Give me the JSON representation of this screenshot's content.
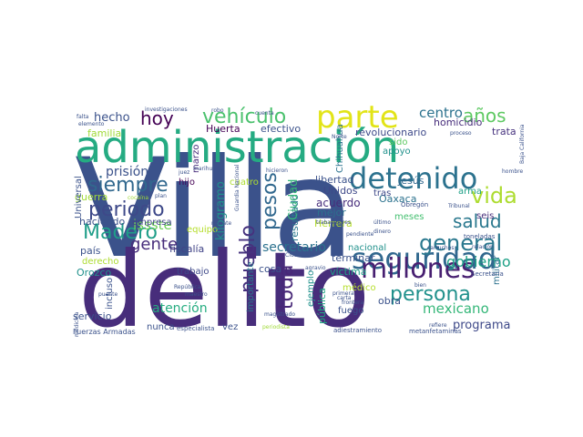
{
  "words": [
    {
      "text": "Villa",
      "color": "#3b528b"
    },
    {
      "text": "delito",
      "color": "#472d7b"
    },
    {
      "text": "administración",
      "color": "#25ab82"
    },
    {
      "text": "parte",
      "color": "#e2e418"
    },
    {
      "text": "detenido",
      "color": "#2c728e"
    },
    {
      "text": "seguridad",
      "color": "#31688e"
    },
    {
      "text": "millones",
      "color": "#482071"
    },
    {
      "text": "persona",
      "color": "#21918c"
    },
    {
      "text": "general",
      "color": "#2a788e"
    },
    {
      "text": "vehículo",
      "color": "#4ac16d"
    },
    {
      "text": "años",
      "color": "#5ec962"
    },
    {
      "text": "periodo",
      "color": "#3e4989"
    },
    {
      "text": "Madero",
      "color": "#1f9e89"
    },
    {
      "text": "siempre",
      "color": "#31688e"
    },
    {
      "text": "vida",
      "color": "#addc30"
    },
    {
      "text": "salud",
      "color": "#2a788e"
    },
    {
      "text": "hoy",
      "color": "#440154"
    },
    {
      "text": "hecho",
      "color": "#3b528b"
    },
    {
      "text": "gente",
      "color": "#472d7b"
    },
    {
      "text": "pesos",
      "color": "#31688e"
    },
    {
      "text": "pueblo",
      "color": "#46327e"
    },
    {
      "text": "toda",
      "color": "#482878"
    },
    {
      "text": "secretario",
      "color": "#2c728e"
    },
    {
      "text": "gobierno",
      "color": "#1fa187"
    },
    {
      "text": "mexicano",
      "color": "#35b779"
    },
    {
      "text": "programa",
      "color": "#3e4989"
    },
    {
      "text": "issste",
      "color": "#6ece58"
    },
    {
      "text": "centro",
      "color": "#2c728e"
    },
    {
      "text": "prisión",
      "color": "#3b528b"
    },
    {
      "text": "kilogramo",
      "color": "#21918c"
    },
    {
      "text": "fiscalía",
      "color": "#414487"
    },
    {
      "text": "atención",
      "color": "#27ad81"
    },
    {
      "text": "acuerdo",
      "color": "#472d7b"
    },
    {
      "text": "resultado",
      "color": "#2a788e"
    },
    {
      "text": "libertad",
      "color": "#3b528b"
    },
    {
      "text": "Jesús",
      "color": "#31688e"
    },
    {
      "text": "Herrera",
      "color": "#b5de2b"
    },
    {
      "text": "Unidos",
      "color": "#3e4989"
    },
    {
      "text": "mejor",
      "color": "#2c728e"
    },
    {
      "text": "revolucionario",
      "color": "#3e4989"
    },
    {
      "text": "homicidio",
      "color": "#472d7b"
    },
    {
      "text": "trata",
      "color": "#46327e"
    },
    {
      "text": "marzo",
      "color": "#472d7b"
    },
    {
      "text": "Huerta",
      "color": "#440154"
    },
    {
      "text": "efectivo",
      "color": "#3b528b"
    },
    {
      "text": "familia",
      "color": "#a0da39"
    },
    {
      "text": "guerra",
      "color": "#a0da39"
    },
    {
      "text": "haciendo",
      "color": "#3b528b"
    },
    {
      "text": "empresa",
      "color": "#414487"
    },
    {
      "text": "país",
      "color": "#3b528b"
    },
    {
      "text": "derecho",
      "color": "#addc30"
    },
    {
      "text": "Orozco",
      "color": "#21918c"
    },
    {
      "text": "trabajo",
      "color": "#3e4989"
    },
    {
      "text": "cosa",
      "color": "#3b528b"
    },
    {
      "text": "víctima",
      "color": "#1fa187"
    },
    {
      "text": "terminar",
      "color": "#3b528b"
    },
    {
      "text": "nacional",
      "color": "#21918c"
    },
    {
      "text": "militar",
      "color": "#2c728e"
    },
    {
      "text": "obra",
      "color": "#3b528b"
    },
    {
      "text": "pública",
      "color": "#22a884"
    },
    {
      "text": "Oaxaca",
      "color": "#2c728e"
    },
    {
      "text": "importante",
      "color": "#2a788e"
    },
    {
      "text": "Chihuahua",
      "color": "#2c728e"
    },
    {
      "text": "Ciudad",
      "color": "#35b779"
    },
    {
      "text": "ejemplo",
      "color": "#21918c"
    },
    {
      "text": "incluso",
      "color": "#3b528b"
    },
    {
      "text": "servicio",
      "color": "#3b528b"
    },
    {
      "text": "nunca",
      "color": "#3b528b"
    },
    {
      "text": "vez",
      "color": "#3b528b"
    },
    {
      "text": "Universal",
      "color": "#3b528b"
    },
    {
      "text": "hijo",
      "color": "#440154"
    },
    {
      "text": "tras",
      "color": "#3e4989"
    },
    {
      "text": "meses",
      "color": "#44bf70"
    },
    {
      "text": "seis",
      "color": "#472d7b"
    },
    {
      "text": "médico",
      "color": "#b5de2b"
    },
    {
      "text": "fuego",
      "color": "#3b528b"
    },
    {
      "text": "apoyo",
      "color": "#21918c"
    },
    {
      "text": "sido",
      "color": "#5ec962"
    },
    {
      "text": "arma",
      "color": "#1fa187"
    },
    {
      "text": "equipo",
      "color": "#b5de2b"
    },
    {
      "text": "cuatro",
      "color": "#addc30"
    },
    {
      "text": "Fuerzas Armadas",
      "color": "#3b528b"
    },
    {
      "text": "especialista",
      "color": "#3b528b"
    },
    {
      "text": "adiestramiento",
      "color": "#3b528b"
    },
    {
      "text": "metanfetaminas",
      "color": "#3b528b"
    },
    {
      "text": "investigaciones",
      "color": "#3b528b"
    },
    {
      "text": "elemento",
      "color": "#3b528b"
    },
    {
      "text": "falta",
      "color": "#3b528b"
    },
    {
      "text": "cocaína",
      "color": "#a0da39"
    },
    {
      "text": "plan",
      "color": "#3b528b"
    },
    {
      "text": "juez",
      "color": "#3b528b"
    },
    {
      "text": "Obregón",
      "color": "#3b528b"
    },
    {
      "text": "toneladas",
      "color": "#3b528b"
    },
    {
      "text": "Secretaría",
      "color": "#3b528b"
    },
    {
      "text": "República",
      "color": "#3b528b"
    },
    {
      "text": "maestro",
      "color": "#3b528b"
    },
    {
      "text": "cartuchos",
      "color": "#3b528b"
    },
    {
      "text": "dinero",
      "color": "#3b528b"
    },
    {
      "text": "Norte",
      "color": "#3b528b"
    },
    {
      "text": "carta",
      "color": "#3b528b"
    },
    {
      "text": "puente",
      "color": "#3b528b"
    },
    {
      "text": "hombre",
      "color": "#3b528b"
    },
    {
      "text": "trabajadores",
      "color": "#3b528b"
    },
    {
      "text": "Guardia Nacional",
      "color": "#3b528b"
    },
    {
      "text": "rescate",
      "color": "#3b528b"
    },
    {
      "text": "hicieron",
      "color": "#3b528b"
    },
    {
      "text": "robo",
      "color": "#3b528b"
    },
    {
      "text": "proceso",
      "color": "#3b528b"
    },
    {
      "text": "Baja California",
      "color": "#3b528b"
    },
    {
      "text": "relación",
      "color": "#3b528b"
    },
    {
      "text": "periodista",
      "color": "#a0da39"
    },
    {
      "text": "frontera",
      "color": "#3b528b"
    },
    {
      "text": "cuenta",
      "color": "#3b528b"
    },
    {
      "text": "Tribunal",
      "color": "#3b528b"
    },
    {
      "text": "pendiente",
      "color": "#3b528b"
    },
    {
      "text": "bien",
      "color": "#3b528b"
    },
    {
      "text": "refiere",
      "color": "#3b528b"
    },
    {
      "text": "marihuana",
      "color": "#3b528b"
    },
    {
      "text": "medicina",
      "color": "#3b528b"
    },
    {
      "text": "primera",
      "color": "#3b528b"
    },
    {
      "text": "magistrado",
      "color": "#3b528b"
    },
    {
      "text": "último",
      "color": "#3b528b"
    },
    {
      "text": "Ciudadano",
      "color": "#3b528b"
    },
    {
      "text": "agravio",
      "color": "#3b528b"
    },
    {
      "text": "libro",
      "color": "#3b528b"
    }
  ]
}
